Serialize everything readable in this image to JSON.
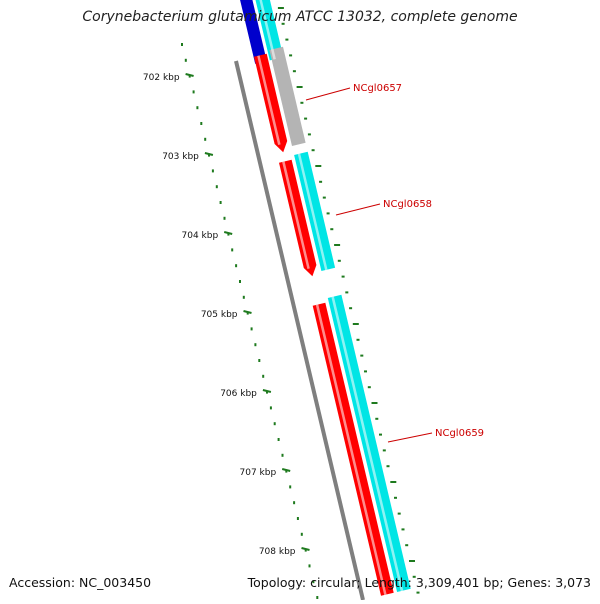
{
  "title": "Corynebacterium glutamicum ATCC 13032, complete genome",
  "accession_text": "Accession: NC_003450",
  "summary_text": "Topology: circular; Length: 3,309,401 bp; Genes: 3,073",
  "ruler": {
    "unit": "kbp",
    "labels": [
      "702 kbp",
      "703 kbp",
      "704 kbp",
      "705 kbp",
      "706 kbp",
      "707 kbp",
      "708 kbp"
    ],
    "tick_color": "#1e7a1e"
  },
  "genes": [
    {
      "name": "NCgl0657",
      "label_color": "#cc0000"
    },
    {
      "name": "NCgl0658",
      "label_color": "#cc0000"
    },
    {
      "name": "NCgl0659",
      "label_color": "#cc0000"
    }
  ],
  "colors": {
    "backbone": "#7f7f7f",
    "cds": "#ff0000",
    "blast_cyan": "#00e5e5",
    "blast_blue": "#0000cc",
    "blast_gray": "#b4b4b4",
    "label": "#cc0000"
  }
}
